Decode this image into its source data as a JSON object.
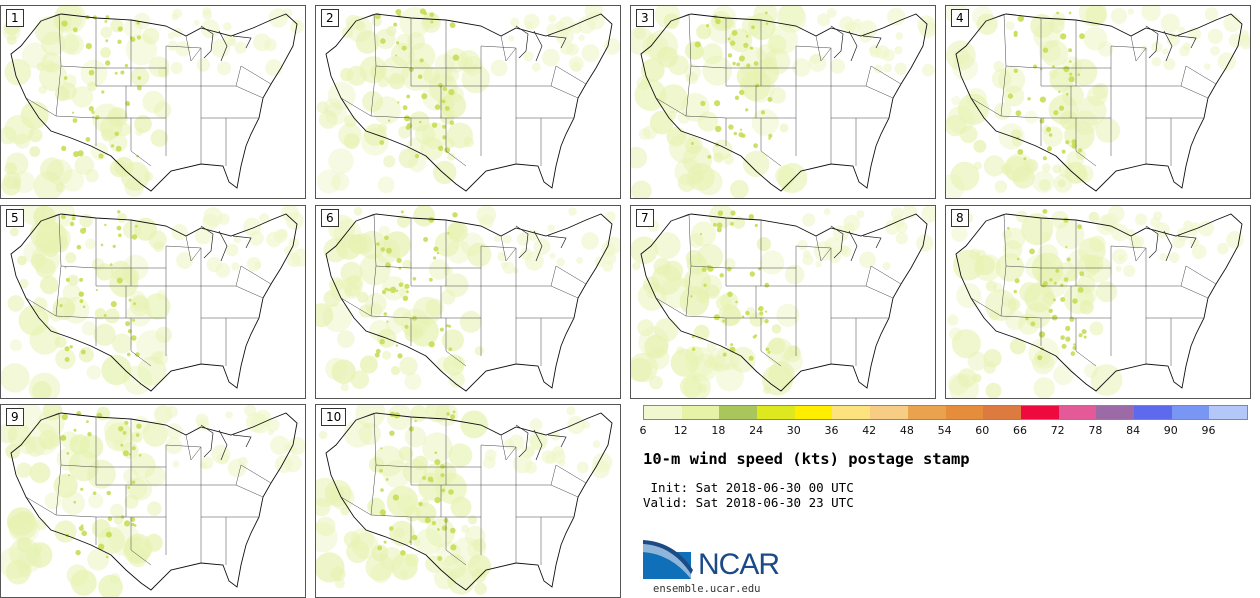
{
  "panels": [
    {
      "label": "1"
    },
    {
      "label": "2"
    },
    {
      "label": "3"
    },
    {
      "label": "4"
    },
    {
      "label": "5"
    },
    {
      "label": "6"
    },
    {
      "label": "7"
    },
    {
      "label": "8"
    },
    {
      "label": "9"
    },
    {
      "label": "10"
    }
  ],
  "colorbar": {
    "colors": [
      "#f1f7cf",
      "#e6f3a7",
      "#a8c65c",
      "#dde81f",
      "#ffee00",
      "#fce37d",
      "#f7cd86",
      "#eaa24f",
      "#e68d3c",
      "#dc7a40",
      "#ec0a3f",
      "#e45a98",
      "#9c6aa6",
      "#5d6aee",
      "#7a96f4",
      "#b3c8f8"
    ],
    "ticks": [
      "6",
      "12",
      "18",
      "24",
      "30",
      "36",
      "42",
      "48",
      "54",
      "60",
      "66",
      "72",
      "78",
      "84",
      "90",
      "96"
    ]
  },
  "title": "10-m wind speed (kts) postage stamp",
  "init": " Init: Sat 2018-06-30 00 UTC",
  "valid": "Valid: Sat 2018-06-30 23 UTC",
  "logo": {
    "text": "NCAR",
    "url": "ensemble.ucar.edu"
  }
}
